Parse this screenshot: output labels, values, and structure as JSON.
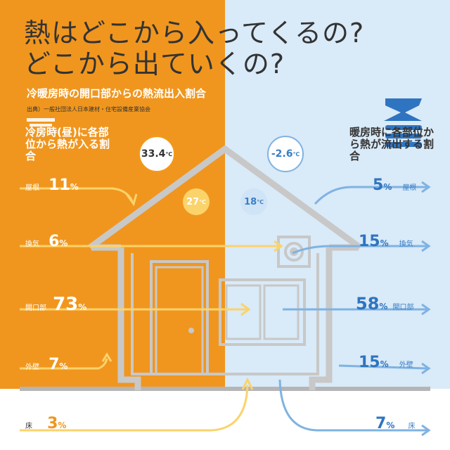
{
  "title": {
    "line1": "熱はどこから入ってくるの?",
    "line2": "どこから出ていくの?"
  },
  "subtitle": "冷暖房時の開口部からの熱流出入割合",
  "source": "出典）一般社団法人日本建材・住宅設備産業協会",
  "summer": {
    "label": "冷房時(昼)に各部位から熱が入る割合",
    "outside_temp": "33.4",
    "inside_temp": "27",
    "unit": "℃",
    "items": [
      {
        "name": "屋根",
        "value": "11",
        "unit": "%"
      },
      {
        "name": "換気",
        "value": "6",
        "unit": "%"
      },
      {
        "name": "開口部",
        "value": "73",
        "unit": "%"
      },
      {
        "name": "外壁",
        "value": "7",
        "unit": "%"
      },
      {
        "name": "床",
        "value": "3",
        "unit": "%"
      }
    ]
  },
  "winter": {
    "label": "暖房時に各部位から熱が流出する割合",
    "season_char": "冬",
    "outside_temp": "-2.6",
    "inside_temp": "18",
    "unit": "℃",
    "items": [
      {
        "name": "屋根",
        "value": "5",
        "unit": "%"
      },
      {
        "name": "換気",
        "value": "15",
        "unit": "%"
      },
      {
        "name": "開口部",
        "value": "58",
        "unit": "%"
      },
      {
        "name": "外壁",
        "value": "15",
        "unit": "%"
      },
      {
        "name": "床",
        "value": "7",
        "unit": "%"
      }
    ]
  },
  "colors": {
    "summer": "#f0961e",
    "winter": "#d9eaf8",
    "summer_arrow": "#fbd36b",
    "winter_arrow": "#7fb3e2",
    "house": "#c8c8c8"
  }
}
